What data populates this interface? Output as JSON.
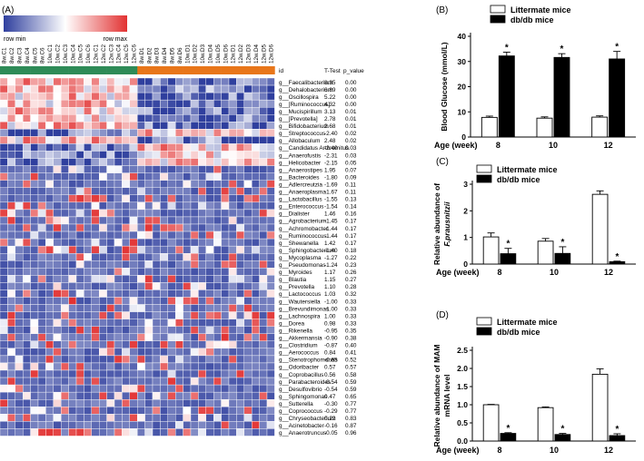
{
  "colors": {
    "low": "#2f3f9e",
    "mid": "#ffffff",
    "high": "#e23232",
    "sample_bar_a": "#2e8b57",
    "sample_bar_b": "#e8761a",
    "bar_white": "#ffffff",
    "bar_black": "#000000"
  },
  "heatmap": {
    "panel_label": "(A)",
    "legend_min": "row min",
    "legend_max": "row max",
    "header_id": "id",
    "header_t": "T-Test",
    "header_p": "p_value",
    "samples": [
      "8w.C1",
      "8w.C2",
      "8w.C3",
      "8w.C4",
      "8w.C5",
      "8w.C6",
      "10w.C1",
      "10w.C2",
      "10w.C3",
      "10w.C4",
      "10w.C5",
      "10w.C6",
      "12w.C1",
      "12w.C2",
      "12w.C3",
      "12w.C4",
      "12w.C5",
      "12w.C6",
      "8w.D1",
      "8w.D2",
      "8w.D3",
      "8w.D4",
      "8w.D5",
      "8w.D6",
      "10w.D1",
      "10w.D2",
      "10w.D3",
      "10w.D4",
      "10w.D5",
      "10w.D6",
      "12w.D1",
      "12w.D2",
      "12w.D3",
      "12w.D4",
      "12w.D5",
      "12w.D6"
    ],
    "taxa": [
      {
        "id": "g__Faecalibacterium",
        "t": "8.35",
        "p": "0.00"
      },
      {
        "id": "g__Dehalobacterium",
        "t": "6.89",
        "p": "0.00"
      },
      {
        "id": "g__Oscillospira",
        "t": "5.22",
        "p": "0.00"
      },
      {
        "id": "g__[Ruminococcus]",
        "t": "4.32",
        "p": "0.00"
      },
      {
        "id": "g__Mucispirillum",
        "t": "3.13",
        "p": "0.01"
      },
      {
        "id": "g__[Prevotella]",
        "t": "2.78",
        "p": "0.01"
      },
      {
        "id": "g__Bifidobacterium",
        "t": "2.68",
        "p": "0.01"
      },
      {
        "id": "g__Streptococcus",
        "t": "-2.40",
        "p": "0.02"
      },
      {
        "id": "g__Allobaculum",
        "t": "2.48",
        "p": "0.02"
      },
      {
        "id": "g__Candidatus Arthromitus",
        "t": "-2.40",
        "p": "0.03"
      },
      {
        "id": "g__Anaerofustis",
        "t": "-2.31",
        "p": "0.03"
      },
      {
        "id": "g__Helicobacter",
        "t": "-2.15",
        "p": "0.05"
      },
      {
        "id": "g__Anaerostipes",
        "t": "1.95",
        "p": "0.07"
      },
      {
        "id": "g__Bacteroides",
        "t": "-1.80",
        "p": "0.09"
      },
      {
        "id": "g__Adlercreutzia",
        "t": "-1.69",
        "p": "0.11"
      },
      {
        "id": "g__Anaeroplasma",
        "t": "-1.67",
        "p": "0.11"
      },
      {
        "id": "g__Lactobacillus",
        "t": "-1.55",
        "p": "0.13"
      },
      {
        "id": "g__Enterococcus",
        "t": "-1.54",
        "p": "0.14"
      },
      {
        "id": "g__Dialister",
        "t": "1.46",
        "p": "0.16"
      },
      {
        "id": "g__Agrobacterium",
        "t": "-1.45",
        "p": "0.17"
      },
      {
        "id": "g__Achromobacter",
        "t": "-1.44",
        "p": "0.17"
      },
      {
        "id": "g__Ruminococcus",
        "t": "-1.44",
        "p": "0.17"
      },
      {
        "id": "g__Shewanella",
        "t": "1.42",
        "p": "0.17"
      },
      {
        "id": "g__Sphingobacterium",
        "t": "-1.40",
        "p": "0.18"
      },
      {
        "id": "g__Mycoplasma",
        "t": "-1.27",
        "p": "0.22"
      },
      {
        "id": "g__Pseudomonas",
        "t": "-1.24",
        "p": "0.23"
      },
      {
        "id": "g__Myroides",
        "t": "1.17",
        "p": "0.26"
      },
      {
        "id": "g__Blautia",
        "t": "1.15",
        "p": "0.27"
      },
      {
        "id": "g__Prevotella",
        "t": "1.10",
        "p": "0.28"
      },
      {
        "id": "g__Lactococcus",
        "t": "1.03",
        "p": "0.32"
      },
      {
        "id": "g__Wautersiella",
        "t": "-1.00",
        "p": "0.33"
      },
      {
        "id": "g__Brevundimonas",
        "t": "-1.00",
        "p": "0.33"
      },
      {
        "id": "g__Lachnospira",
        "t": "1.00",
        "p": "0.33"
      },
      {
        "id": "g__Dorea",
        "t": "0.98",
        "p": "0.33"
      },
      {
        "id": "g__Rikenella",
        "t": "-0.95",
        "p": "0.35"
      },
      {
        "id": "g__Akkermansia",
        "t": "-0.90",
        "p": "0.38"
      },
      {
        "id": "g__Clostridium",
        "t": "-0.87",
        "p": "0.40"
      },
      {
        "id": "g__Aerococcus",
        "t": "0.84",
        "p": "0.41"
      },
      {
        "id": "g__Stenotrophomonas",
        "t": "-0.65",
        "p": "0.52"
      },
      {
        "id": "g__Odoribacter",
        "t": "0.57",
        "p": "0.57"
      },
      {
        "id": "g__Coprobacillus",
        "t": "0.56",
        "p": "0.58"
      },
      {
        "id": "g__Parabacteroides",
        "t": "-0.54",
        "p": "0.59"
      },
      {
        "id": "g__Desulfovibrio",
        "t": "-0.54",
        "p": "0.59"
      },
      {
        "id": "g__Sphingomonas",
        "t": "0.47",
        "p": "0.65"
      },
      {
        "id": "g__Sutterella",
        "t": "-0.30",
        "p": "0.77"
      },
      {
        "id": "g__Coprococcus",
        "t": "-0.29",
        "p": "0.77"
      },
      {
        "id": "g__Chryseobacterium",
        "t": "0.22",
        "p": "0.83"
      },
      {
        "id": "g__Acinetobacter",
        "t": "-0.16",
        "p": "0.87"
      },
      {
        "id": "g__Anaerotruncus",
        "t": "-0.05",
        "p": "0.96"
      }
    ]
  },
  "chart_data": [
    {
      "type": "bar",
      "panel_label": "(B)",
      "ylabel": "Blood Glucose (mmol/L)",
      "xlabel_prefix": "Age (week)",
      "categories": [
        "8",
        "10",
        "12"
      ],
      "ylim": [
        0,
        40
      ],
      "yticks": [
        "0",
        "10",
        "20",
        "30",
        "40"
      ],
      "series": [
        {
          "name": "Littermate mice",
          "values": [
            7.8,
            7.5,
            7.9
          ],
          "errors": [
            0.5,
            0.5,
            0.5
          ]
        },
        {
          "name": "db/db mice",
          "values": [
            32.2,
            31.6,
            31.0
          ],
          "errors": [
            1.5,
            1.5,
            3.0
          ]
        }
      ],
      "significance": [
        "*",
        "*",
        "*"
      ]
    },
    {
      "type": "bar",
      "panel_label": "(C)",
      "ylabel": "Relative abundance of F.prausnitzii",
      "ylabel_line1": "Relative abundance of",
      "ylabel_line2": "F.prausnitzii",
      "xlabel_prefix": "Age (week)",
      "categories": [
        "8",
        "10",
        "12"
      ],
      "ylim": [
        0,
        3
      ],
      "yticks": [
        "0",
        "1",
        "2",
        "3"
      ],
      "series": [
        {
          "name": "Littermate mice",
          "values": [
            1.02,
            0.86,
            2.62
          ],
          "errors": [
            0.15,
            0.1,
            0.13
          ]
        },
        {
          "name": "db/db mice",
          "values": [
            0.39,
            0.4,
            0.09
          ],
          "errors": [
            0.2,
            0.25,
            0.02
          ]
        }
      ],
      "significance": [
        "*",
        "*",
        "*"
      ]
    },
    {
      "type": "bar",
      "panel_label": "(D)",
      "ylabel": "Relative abundance of MAM mRNA level",
      "ylabel_line1": "Relative abundance of MAM",
      "ylabel_line2": "mRNA level",
      "xlabel_prefix": "Age (week)",
      "categories": [
        "8",
        "10",
        "12"
      ],
      "ylim": [
        0,
        2.5
      ],
      "yticks": [
        "0.0",
        "0.5",
        "1.0",
        "1.5",
        "2.0",
        "2.5"
      ],
      "series": [
        {
          "name": "Littermate mice",
          "values": [
            1.0,
            0.92,
            1.84
          ],
          "errors": [
            0.01,
            0.02,
            0.15
          ]
        },
        {
          "name": "db/db mice",
          "values": [
            0.21,
            0.18,
            0.15
          ],
          "errors": [
            0.02,
            0.03,
            0.05
          ]
        }
      ],
      "significance": [
        "*",
        "*",
        "*"
      ]
    }
  ]
}
